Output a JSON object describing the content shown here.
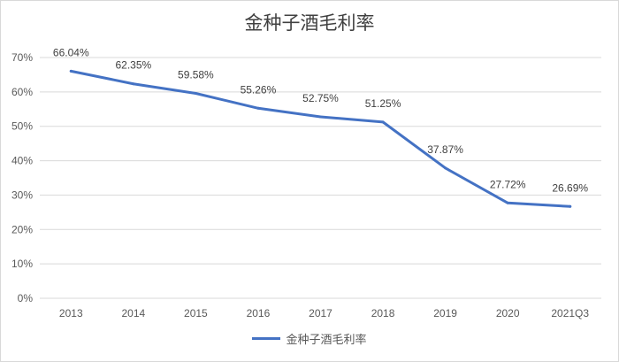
{
  "chart_data": {
    "type": "line",
    "title": "金种子酒毛利率",
    "categories": [
      "2013",
      "2014",
      "2015",
      "2016",
      "2017",
      "2018",
      "2019",
      "2020",
      "2021Q3"
    ],
    "series": [
      {
        "name": "金种子酒毛利率",
        "values": [
          66.04,
          62.35,
          59.58,
          55.26,
          52.75,
          51.25,
          37.87,
          27.72,
          26.69
        ],
        "labels": [
          "66.04%",
          "62.35%",
          "59.58%",
          "55.26%",
          "52.75%",
          "51.25%",
          "37.87%",
          "27.72%",
          "26.69%"
        ]
      }
    ],
    "yticks": [
      "0%",
      "10%",
      "20%",
      "30%",
      "40%",
      "50%",
      "60%",
      "70%"
    ],
    "ylim": [
      0,
      70
    ],
    "grid": true,
    "legend_position": "bottom",
    "colors": {
      "line": "#4472C4",
      "grid": "#d9d9d9"
    }
  }
}
